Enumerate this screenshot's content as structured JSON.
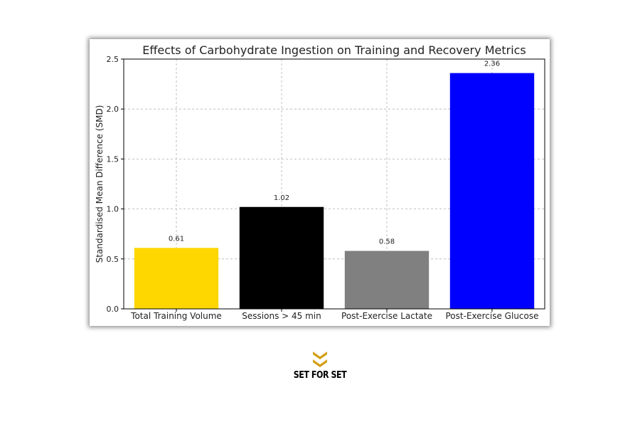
{
  "chart_data": {
    "type": "bar",
    "title": "Effects of Carbohydrate Ingestion on Training and Recovery Metrics",
    "xlabel": "",
    "ylabel": "Standardised Mean Difference (SMD)",
    "categories": [
      "Total Training Volume",
      "Sessions > 45 min",
      "Post-Exercise Lactate",
      "Post-Exercise Glucose"
    ],
    "values": [
      0.61,
      1.02,
      0.58,
      2.36
    ],
    "value_labels": [
      "0.61",
      "1.02",
      "0.58",
      "2.36"
    ],
    "colors": [
      "#ffd700",
      "#000000",
      "#808080",
      "#0000ff"
    ],
    "ylim": [
      0,
      2.5
    ],
    "yticks": [
      0.0,
      0.5,
      1.0,
      1.5,
      2.0,
      2.5
    ],
    "ytick_labels": [
      "0.0",
      "0.5",
      "1.0",
      "1.5",
      "2.0",
      "2.5"
    ],
    "grid": true,
    "legend": "none"
  },
  "branding": {
    "logo_text": "SET FOR SET",
    "logo_icon": "double-chevron-logo-icon",
    "logo_color": "#d4a017"
  }
}
